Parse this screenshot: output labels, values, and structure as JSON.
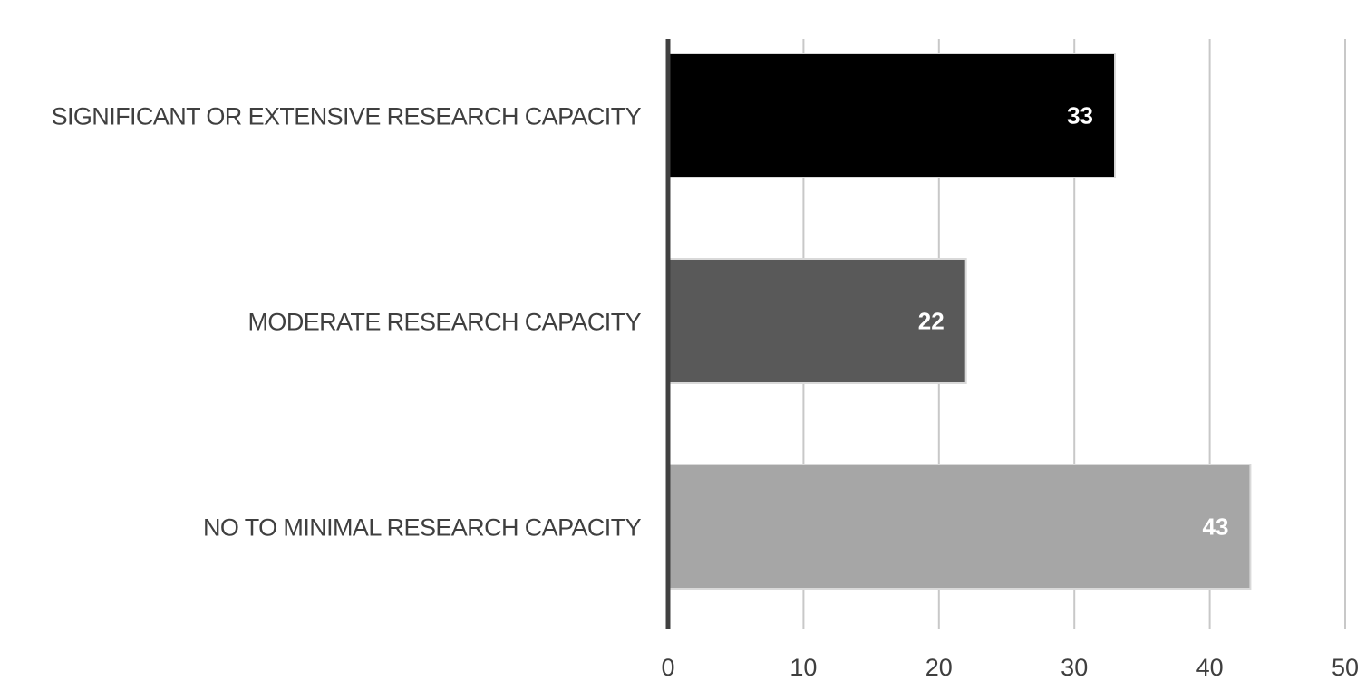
{
  "chart_data": {
    "type": "bar",
    "orientation": "horizontal",
    "categories": [
      "SIGNIFICANT OR EXTENSIVE RESEARCH CAPACITY",
      "MODERATE RESEARCH CAPACITY",
      "NO TO MINIMAL RESEARCH CAPACITY"
    ],
    "values": [
      33,
      22,
      43
    ],
    "data_labels": [
      "33",
      "22",
      "43"
    ],
    "bar_colors": [
      "#000000",
      "#595959",
      "#a6a6a6"
    ],
    "xlim": [
      0,
      50
    ],
    "x_ticks": [
      "0",
      "10",
      "20",
      "30",
      "40",
      "50"
    ],
    "x_tick_values": [
      0,
      10,
      20,
      30,
      40,
      50
    ],
    "title": "",
    "xlabel": "",
    "ylabel": "",
    "grid": "vertical",
    "legend": "none"
  }
}
